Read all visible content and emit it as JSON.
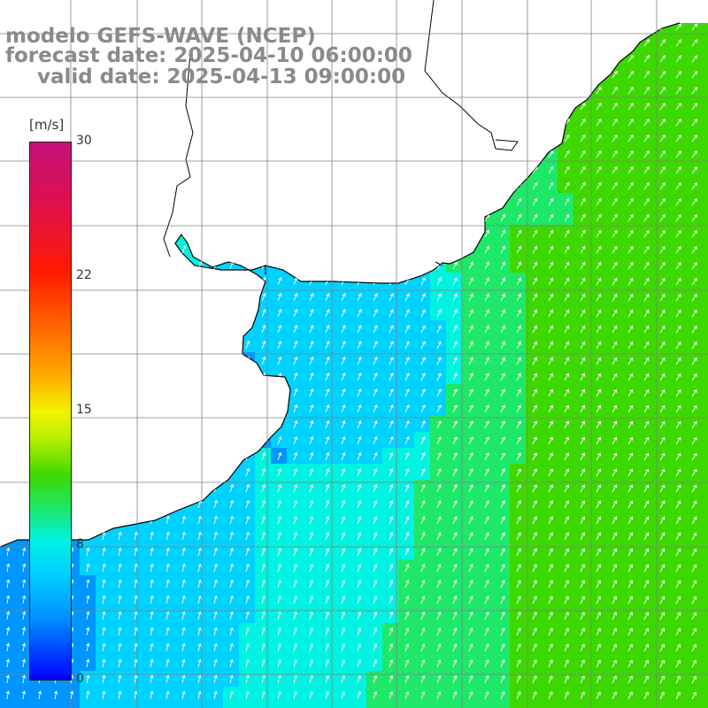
{
  "title": {
    "line1": "modelo GEFS-WAVE (NCEP)",
    "line2": "forecast date: 2025-04-10 06:00:00",
    "line3": "valid date: 2025-04-13 09:00:00"
  },
  "legend": {
    "unit": "[m/s]",
    "ticks": [
      "30",
      "22",
      "15",
      "8",
      "0"
    ],
    "colors": [
      "#0000ff",
      "#0040ff",
      "#0096ff",
      "#00d2ff",
      "#00f2e0",
      "#1ee868",
      "#3cd800",
      "#b8f000",
      "#f2f200",
      "#ffb000",
      "#ff6a00",
      "#ff1a00",
      "#e0104a",
      "#c4127a"
    ]
  },
  "map": {
    "land_color": "#ffffff",
    "grid_color": "#808080",
    "coast_color": "#000000",
    "vector_color": "#ffffff"
  }
}
